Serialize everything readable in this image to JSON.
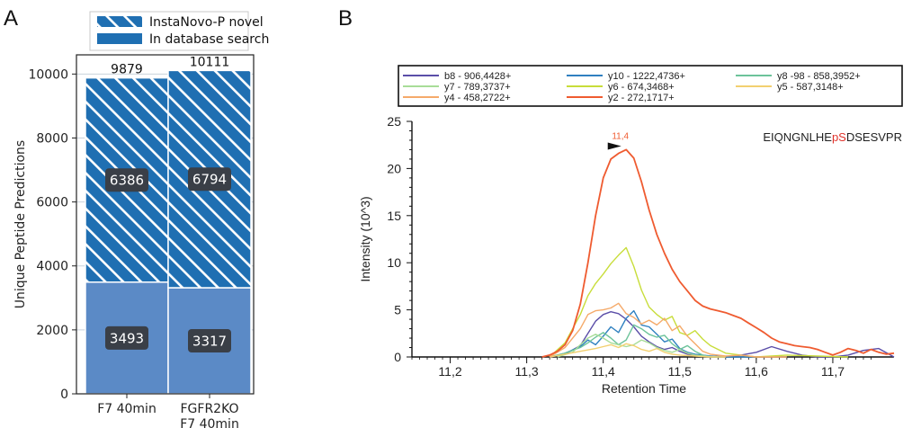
{
  "panels": {
    "a": "A",
    "b": "B"
  },
  "colors": {
    "bar": "#1f6fb2",
    "bar_lower": "#5b8ac6",
    "label_bg": "#3a3f47",
    "peptide": "#222222",
    "peptide_highlight": "#e0312a"
  },
  "chart_data": [
    {
      "type": "bar",
      "stacked": true,
      "categories": [
        "F7 40min",
        "FGFR2KO\nF7 40min"
      ],
      "category_lines": [
        [
          "F7 40min"
        ],
        [
          "FGFR2KO",
          "F7 40min"
        ]
      ],
      "series": [
        {
          "name": "In database search",
          "values": [
            3493,
            3317
          ],
          "pattern": "solid",
          "color": "#5b8ac6"
        },
        {
          "name": "InstaNovo-P novel",
          "values": [
            6386,
            6794
          ],
          "pattern": "hatched",
          "color": "#1f6fb2"
        }
      ],
      "segment_labels": [
        [
          "3493",
          "6386"
        ],
        [
          "3317",
          "6794"
        ]
      ],
      "totals": [
        "9879",
        "10111"
      ],
      "ylabel": "Unique Peptide Predictions",
      "xlabel": "",
      "ylim": [
        0,
        10600
      ],
      "yticks": [
        0,
        2000,
        4000,
        6000,
        8000,
        10000
      ],
      "ytick_labels": [
        "0",
        "2000",
        "4000",
        "6000",
        "8000",
        "10000"
      ],
      "legend": [
        {
          "label": "InstaNovo-P novel",
          "pattern": "hatched"
        },
        {
          "label": "In database search",
          "pattern": "solid"
        }
      ],
      "legend_position": "top",
      "grid": true
    },
    {
      "type": "line",
      "xlabel": "Retention Time",
      "ylabel": "Intensity (10^3)",
      "xlim": [
        11.15,
        11.78
      ],
      "ylim": [
        0,
        25
      ],
      "xticks": [
        11.2,
        11.3,
        11.4,
        11.5,
        11.6,
        11.7
      ],
      "xtick_labels": [
        "11,2",
        "11,3",
        "11,4",
        "11,5",
        "11,6",
        "11,7"
      ],
      "yticks": [
        0,
        5,
        10,
        15,
        20,
        25
      ],
      "ytick_labels": [
        "0",
        "5",
        "10",
        "15",
        "20",
        "25"
      ],
      "peptide_parts": [
        {
          "text": "EIQNGNLHE",
          "highlight": false
        },
        {
          "text": "pS",
          "highlight": true
        },
        {
          "text": "DSESVPR",
          "highlight": false
        }
      ],
      "peak_annotation": {
        "text": "11,4",
        "x": 11.42,
        "y": 22.0
      },
      "legend_position": "top",
      "grid": false,
      "series": [
        {
          "name": "b8 - 906,4428+",
          "color": "#5b4ea8",
          "x": [
            11.33,
            11.35,
            11.37,
            11.38,
            11.39,
            11.4,
            11.41,
            11.42,
            11.43,
            11.44,
            11.45,
            11.46,
            11.47,
            11.48,
            11.49,
            11.5,
            11.51,
            11.52,
            11.54,
            11.56,
            11.58,
            11.6,
            11.62,
            11.64,
            11.66,
            11.68,
            11.7,
            11.72,
            11.74,
            11.76,
            11.78
          ],
          "y": [
            0,
            0.3,
            1.2,
            2.5,
            3.8,
            4.5,
            4.8,
            4.6,
            4.0,
            3.2,
            2.2,
            1.6,
            1.1,
            0.8,
            1.0,
            0.6,
            0.3,
            0.2,
            0.1,
            0,
            0.2,
            0.5,
            1.1,
            0.6,
            0.2,
            0,
            0,
            0.2,
            0.7,
            0.9,
            0
          ]
        },
        {
          "name": "y10 - 1222,4736+",
          "color": "#2f80c0",
          "x": [
            11.33,
            11.35,
            11.37,
            11.38,
            11.39,
            11.4,
            11.41,
            11.42,
            11.43,
            11.44,
            11.45,
            11.46,
            11.47,
            11.48,
            11.49,
            11.5,
            11.51,
            11.52,
            11.54,
            11.56,
            11.58,
            11.6
          ],
          "y": [
            0,
            0.4,
            1.1,
            1.8,
            1.3,
            2.2,
            3.2,
            2.6,
            4.1,
            4.9,
            3.4,
            3.2,
            2.4,
            1.6,
            1.9,
            0.9,
            0.5,
            0.3,
            0.1,
            0,
            0,
            0
          ]
        },
        {
          "name": "y8 -98 - 858,3952+",
          "color": "#6cc39a",
          "x": [
            11.33,
            11.35,
            11.37,
            11.38,
            11.39,
            11.4,
            11.41,
            11.42,
            11.43,
            11.44,
            11.45,
            11.46,
            11.47,
            11.48,
            11.49,
            11.5,
            11.51,
            11.52,
            11.53,
            11.54,
            11.56
          ],
          "y": [
            0,
            0.4,
            1.0,
            1.5,
            2.1,
            2.6,
            2.0,
            1.3,
            1.8,
            3.4,
            3.0,
            2.4,
            2.1,
            2.3,
            1.4,
            0.8,
            1.2,
            0.6,
            0.2,
            0,
            0
          ]
        },
        {
          "name": "y7 - 789,3737+",
          "color": "#a8dd98",
          "x": [
            11.34,
            11.36,
            11.37,
            11.38,
            11.39,
            11.4,
            11.41,
            11.42,
            11.43,
            11.44,
            11.45,
            11.46,
            11.47,
            11.48,
            11.49,
            11.5,
            11.51,
            11.52,
            11.53,
            11.55
          ],
          "y": [
            0,
            0.5,
            1.3,
            2.0,
            2.4,
            2.0,
            1.5,
            1.3,
            1.1,
            1.3,
            1.8,
            1.5,
            1.0,
            0.7,
            0.5,
            0.8,
            0.4,
            0.2,
            0.1,
            0
          ]
        },
        {
          "name": "y6 - 674,3468+",
          "color": "#c8dd3a",
          "x": [
            11.33,
            11.35,
            11.37,
            11.38,
            11.39,
            11.4,
            11.41,
            11.42,
            11.43,
            11.44,
            11.45,
            11.46,
            11.47,
            11.48,
            11.49,
            11.5,
            11.51,
            11.52,
            11.53,
            11.54,
            11.56,
            11.58,
            11.6,
            11.64,
            11.68,
            11.72
          ],
          "y": [
            0,
            1.5,
            4.5,
            6.5,
            7.8,
            8.8,
            9.9,
            10.8,
            11.6,
            9.6,
            7.1,
            5.3,
            4.5,
            3.9,
            4.3,
            2.6,
            2.3,
            2.8,
            1.9,
            1.2,
            0.4,
            0.2,
            0,
            0.2,
            0.1,
            0
          ]
        },
        {
          "name": "y5 - 587,3148+",
          "color": "#f2d070",
          "x": [
            11.33,
            11.35,
            11.37,
            11.39,
            11.4,
            11.41,
            11.42,
            11.43,
            11.44,
            11.45,
            11.46,
            11.47,
            11.48,
            11.49,
            11.5,
            11.52,
            11.54,
            11.56
          ],
          "y": [
            0,
            0.3,
            0.6,
            0.9,
            1.1,
            1.3,
            1.0,
            1.4,
            1.2,
            0.8,
            0.6,
            0.9,
            0.5,
            0.3,
            0.2,
            0.1,
            0,
            0
          ]
        },
        {
          "name": "y4 - 458,2722+",
          "color": "#f5aa6a",
          "x": [
            11.33,
            11.35,
            11.37,
            11.38,
            11.39,
            11.4,
            11.41,
            11.42,
            11.43,
            11.44,
            11.45,
            11.46,
            11.47,
            11.48,
            11.49,
            11.5,
            11.51,
            11.52,
            11.53,
            11.54,
            11.56,
            11.58,
            11.6,
            11.64
          ],
          "y": [
            0,
            1.0,
            3.0,
            4.5,
            4.9,
            5.0,
            5.2,
            5.7,
            4.6,
            4.2,
            3.5,
            3.9,
            3.4,
            4.1,
            2.8,
            3.3,
            2.2,
            1.4,
            0.6,
            0.3,
            0.1,
            0.2,
            0,
            0
          ]
        },
        {
          "name": "y2 - 272,1717+",
          "color": "#ef5b30",
          "x": [
            11.32,
            11.33,
            11.34,
            11.35,
            11.36,
            11.37,
            11.38,
            11.39,
            11.4,
            11.41,
            11.42,
            11.43,
            11.44,
            11.45,
            11.46,
            11.47,
            11.48,
            11.49,
            11.5,
            11.51,
            11.52,
            11.53,
            11.54,
            11.55,
            11.56,
            11.57,
            11.58,
            11.59,
            11.6,
            11.61,
            11.62,
            11.63,
            11.64,
            11.65,
            11.66,
            11.67,
            11.68,
            11.69,
            11.7,
            11.71,
            11.72,
            11.73,
            11.74,
            11.75,
            11.76,
            11.77,
            11.78
          ],
          "y": [
            0,
            0.2,
            0.6,
            1.3,
            2.8,
            5.6,
            10.0,
            15.0,
            19.0,
            21.0,
            21.6,
            22.0,
            21.1,
            18.6,
            15.6,
            13.0,
            11.0,
            9.3,
            8.0,
            7.0,
            6.0,
            5.4,
            5.1,
            4.9,
            4.7,
            4.4,
            4.1,
            3.6,
            3.1,
            2.6,
            2.0,
            1.6,
            1.4,
            1.2,
            1.1,
            1.0,
            0.8,
            0.5,
            0.2,
            0.5,
            0.9,
            0.7,
            0.4,
            0.8,
            0.5,
            0.3,
            0.4
          ]
        }
      ]
    }
  ]
}
